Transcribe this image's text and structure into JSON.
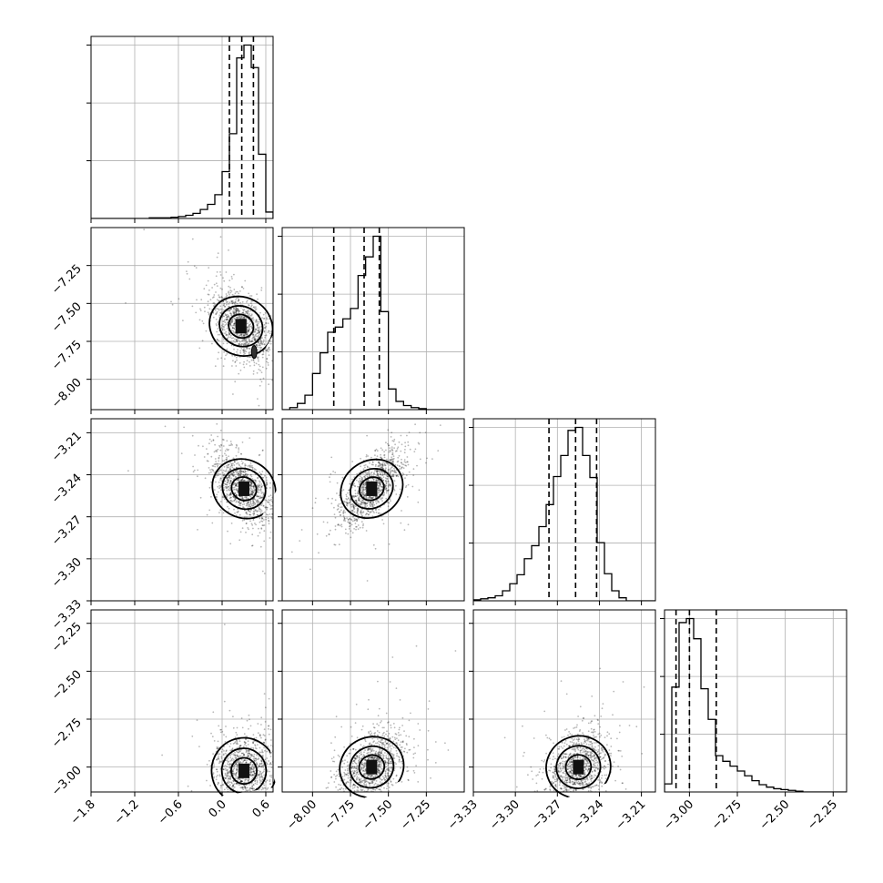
{
  "chart_data": {
    "type": "corner",
    "grid": true,
    "variables": [
      {
        "range": [
          -1.8,
          0.7
        ],
        "ticks": [
          -1.8,
          -1.2,
          -0.6,
          0.0,
          0.6
        ],
        "tick_labels": [
          "−1.8",
          "−1.2",
          "−0.6",
          "0.0",
          "0.6"
        ],
        "quantiles": [
          0.1,
          0.27,
          0.43
        ]
      },
      {
        "range": [
          -8.2,
          -7.0
        ],
        "ticks": [
          -8.0,
          -7.75,
          -7.5,
          -7.25
        ],
        "tick_labels": [
          "−8.00",
          "−7.75",
          "−7.50",
          "−7.25"
        ],
        "quantiles": [
          -7.86,
          -7.66,
          -7.56
        ]
      },
      {
        "range": [
          -3.33,
          -3.2
        ],
        "ticks": [
          -3.33,
          -3.3,
          -3.27,
          -3.24,
          -3.21
        ],
        "tick_labels": [
          "−3.33",
          "−3.30",
          "−3.27",
          "−3.24",
          "−3.21"
        ],
        "quantiles": [
          -3.276,
          -3.257,
          -3.242
        ]
      },
      {
        "range": [
          -3.13,
          -2.18
        ],
        "ticks": [
          -3.0,
          -2.75,
          -2.5,
          -2.25
        ],
        "tick_labels": [
          "−3.00",
          "−2.75",
          "−2.50",
          "−2.25"
        ],
        "quantiles": [
          -3.07,
          -3.0,
          -2.86
        ]
      }
    ],
    "histograms": [
      {
        "bins": [
          -1.8,
          -1.7,
          -1.6,
          -1.5,
          -1.4,
          -1.3,
          -1.2,
          -1.1,
          -1.0,
          -0.9,
          -0.8,
          -0.7,
          -0.6,
          -0.5,
          -0.4,
          -0.3,
          -0.2,
          -0.1,
          0.0,
          0.1,
          0.2,
          0.3,
          0.4,
          0.5,
          0.6,
          0.7
        ],
        "counts": [
          0,
          0,
          0,
          0,
          0,
          0,
          0,
          0,
          1,
          1,
          1,
          2,
          3,
          5,
          8,
          14,
          22,
          37,
          73,
          132,
          250,
          270,
          235,
          100,
          10
        ]
      },
      {
        "bins": [
          -8.2,
          -8.15,
          -8.1,
          -8.05,
          -8.0,
          -7.95,
          -7.9,
          -7.85,
          -7.8,
          -7.75,
          -7.7,
          -7.65,
          -7.6,
          -7.55,
          -7.5,
          -7.45,
          -7.4,
          -7.35,
          -7.3,
          -7.25,
          -7.2,
          -7.15,
          -7.1,
          -7.05,
          -7.0
        ],
        "counts": [
          0,
          2,
          6,
          14,
          35,
          55,
          75,
          80,
          88,
          98,
          130,
          148,
          168,
          95,
          20,
          8,
          4,
          2,
          1,
          0,
          0,
          0,
          0,
          0
        ]
      },
      {
        "bins": [
          -3.33,
          -3.3248,
          -3.3196,
          -3.3144,
          -3.3092,
          -3.304,
          -3.2988,
          -3.2936,
          -3.2884,
          -3.2832,
          -3.278,
          -3.2728,
          -3.2676,
          -3.2624,
          -3.2572,
          -3.252,
          -3.2468,
          -3.2416,
          -3.2364,
          -3.2312,
          -3.226,
          -3.2208,
          -3.2156,
          -3.2104,
          -3.2052,
          -3.2
        ],
        "counts": [
          1,
          2,
          3,
          5,
          10,
          17,
          26,
          42,
          55,
          74,
          96,
          124,
          145,
          170,
          173,
          145,
          123,
          58,
          27,
          10,
          3,
          0,
          0,
          0,
          0
        ]
      },
      {
        "bins": [
          -3.13,
          -3.092,
          -3.054,
          -3.016,
          -2.978,
          -2.94,
          -2.902,
          -2.864,
          -2.826,
          -2.788,
          -2.75,
          -2.712,
          -2.674,
          -2.636,
          -2.598,
          -2.56,
          -2.522,
          -2.484,
          -2.446,
          -2.408,
          -2.37,
          -2.332,
          -2.294,
          -2.256,
          -2.218,
          -2.18
        ],
        "counts": [
          10,
          130,
          210,
          215,
          190,
          128,
          90,
          45,
          38,
          32,
          26,
          20,
          14,
          9,
          6,
          4,
          3,
          2,
          1,
          0,
          0,
          0,
          0,
          0,
          0
        ]
      }
    ],
    "pairs": [
      {
        "x": 0,
        "y": 1,
        "peak": [
          0.26,
          -7.65
        ],
        "second_mode": [
          0.44,
          -7.82
        ],
        "corr": -0.55
      },
      {
        "x": 0,
        "y": 2,
        "peak": [
          0.3,
          -3.25
        ],
        "corr": -0.55
      },
      {
        "x": 1,
        "y": 2,
        "peak": [
          -7.61,
          -3.25
        ],
        "corr": 0.65
      },
      {
        "x": 0,
        "y": 3,
        "peak": [
          0.3,
          -3.02
        ],
        "corr": 0.15
      },
      {
        "x": 1,
        "y": 3,
        "peak": [
          -7.61,
          -3.0
        ],
        "corr": 0.45
      },
      {
        "x": 2,
        "y": 3,
        "peak": [
          -3.255,
          -3.0
        ],
        "corr": 0.35
      }
    ]
  }
}
